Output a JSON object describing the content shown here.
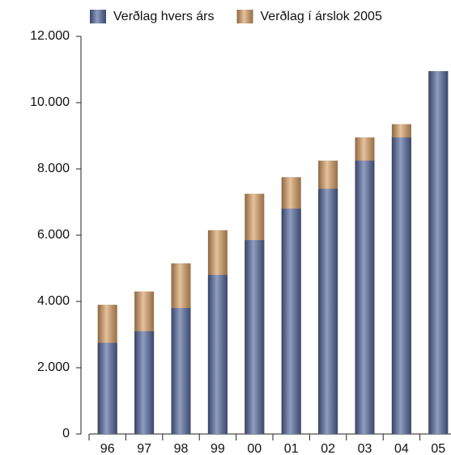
{
  "chart_data": {
    "type": "bar",
    "overlap": true,
    "categories": [
      "96",
      "97",
      "98",
      "99",
      "00",
      "01",
      "02",
      "03",
      "04",
      "05"
    ],
    "series": [
      {
        "name": "Verðlag í árslok 2005",
        "color": "#d9a066",
        "values": [
          3900,
          4300,
          5150,
          6150,
          7250,
          7750,
          8250,
          8950,
          9350,
          10950
        ]
      },
      {
        "name": "Verðlag hvers árs",
        "color": "#55699f",
        "values": [
          2750,
          3100,
          3800,
          4800,
          5850,
          6800,
          7400,
          8250,
          8950,
          10950
        ]
      }
    ],
    "legend": "top",
    "ylim": [
      0,
      12000
    ],
    "yticks": [
      0,
      {
        "value": 2000,
        "label": "2.000"
      },
      {
        "value": 4000,
        "label": "4.000"
      },
      {
        "value": 6000,
        "label": "6.000"
      },
      {
        "value": 8000,
        "label": "8.000"
      },
      {
        "value": 10000,
        "label": "10.000"
      },
      {
        "value": 12000,
        "label": "12.000"
      }
    ]
  }
}
